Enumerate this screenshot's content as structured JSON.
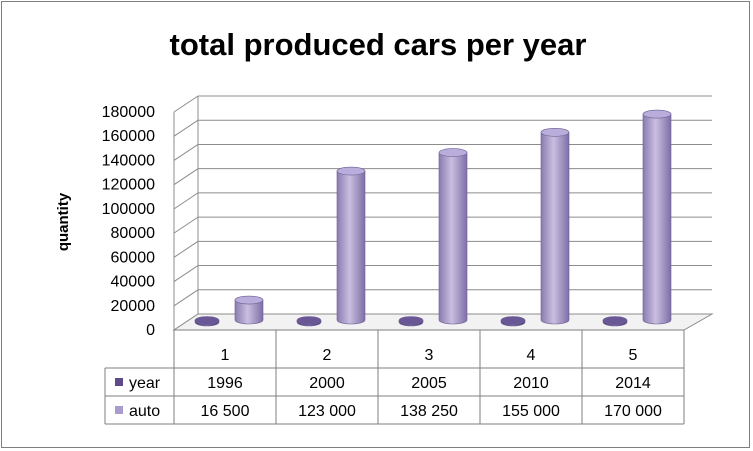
{
  "chart_data": {
    "type": "bar",
    "title": "total produced cars per year",
    "xlabel": "",
    "ylabel": "quantity",
    "categories": [
      "1",
      "2",
      "3",
      "4",
      "5"
    ],
    "ylim": [
      0,
      180000
    ],
    "yticks": [
      "180000",
      "160000",
      "140000",
      "120000",
      "100000",
      "80000",
      "60000",
      "40000",
      "20000",
      "0"
    ],
    "grid": true,
    "legend": "table-bottom",
    "series": [
      {
        "name": "year",
        "color": "#5f4b8b",
        "values": [
          1996,
          2000,
          2005,
          2010,
          2014
        ],
        "labels": [
          "1996",
          "2000",
          "2005",
          "2010",
          "2014"
        ]
      },
      {
        "name": "auto",
        "color": "#a99bcb",
        "values": [
          16500,
          123000,
          138250,
          155000,
          170000
        ],
        "labels": [
          "16 500",
          "123 000",
          "138 250",
          "155 000",
          "170 000"
        ]
      }
    ]
  }
}
